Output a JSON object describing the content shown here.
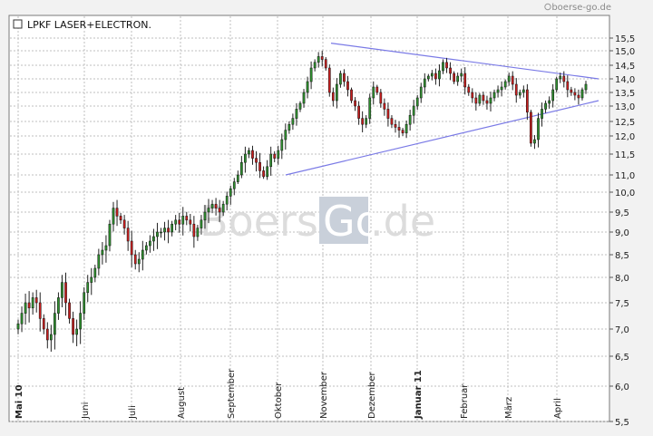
{
  "credit": "boerse-go.de",
  "watermark": {
    "left": "Boerse",
    "box": "Go",
    "right": ".de"
  },
  "chart_data": {
    "type": "candlestick",
    "title": "LPKF LASER+ELECTRON.",
    "ylim": [
      5.5,
      15.5
    ],
    "y_ticks": [
      15.5,
      15.0,
      14.5,
      14.0,
      13.5,
      13.0,
      12.5,
      12.0,
      11.5,
      11.0,
      10.0,
      9.5,
      9.0,
      8.5,
      8.0,
      7.5,
      7.0,
      6.5,
      6.0,
      5.5
    ],
    "x_ticks": [
      "Mai 10",
      "Juni",
      "Juli",
      "August",
      "September",
      "Oktober",
      "November",
      "Dezember",
      "Januar 11",
      "Februar",
      "März",
      "April"
    ],
    "bold_x_ticks": [
      "Mai 10",
      "Januar 11"
    ],
    "grid": true,
    "colors": {
      "up": "#2f8f2f",
      "down": "#c81e1e",
      "trendline": "#7a7ae6",
      "grid": "#bfbfbf"
    },
    "series": [
      {
        "values": [
          7.1,
          7.3,
          7.5,
          7.4,
          7.6,
          7.5,
          7.2,
          7.0,
          6.8,
          6.9,
          7.3,
          7.6,
          7.9,
          7.5,
          7.2,
          6.9,
          7.0,
          7.3,
          7.7,
          7.9,
          8.0,
          8.2,
          8.5,
          8.6,
          8.7,
          9.2,
          9.6,
          9.4,
          9.3,
          9.1,
          8.8,
          8.5,
          8.3,
          8.4,
          8.6,
          8.7,
          8.8,
          8.9,
          9.0,
          9.0,
          9.1,
          9.0,
          9.2,
          9.3,
          9.2,
          9.4,
          9.3,
          9.2,
          8.9,
          9.1,
          9.3,
          9.5,
          9.6,
          9.7,
          9.6,
          9.5,
          9.7,
          9.9,
          10.2,
          10.6,
          11.0,
          11.3,
          11.5,
          11.6,
          11.4,
          11.3,
          11.1,
          10.9,
          11.2,
          11.5,
          11.4,
          11.6,
          11.9,
          12.2,
          12.4,
          12.6,
          12.9,
          13.1,
          13.5,
          13.9,
          14.4,
          14.6,
          14.8,
          14.7,
          14.4,
          13.5,
          13.2,
          13.8,
          14.2,
          13.9,
          13.6,
          13.2,
          13.0,
          12.6,
          12.4,
          12.6,
          13.3,
          13.7,
          13.5,
          13.1,
          12.9,
          12.6,
          12.4,
          12.3,
          12.2,
          12.1,
          12.4,
          12.7,
          13.0,
          13.3,
          13.7,
          14.0,
          14.1,
          14.2,
          14.0,
          14.3,
          14.6,
          14.4,
          14.2,
          13.9,
          14.1,
          14.2,
          13.7,
          13.5,
          13.3,
          13.1,
          13.4,
          13.2,
          13.1,
          13.3,
          13.5,
          13.6,
          13.7,
          13.9,
          14.1,
          13.8,
          13.4,
          13.5,
          13.6,
          12.8,
          11.8,
          11.9,
          12.6,
          12.9,
          13.1,
          13.2,
          13.6,
          14.0,
          14.1,
          13.9,
          13.6,
          13.5,
          13.4,
          13.3,
          13.6,
          13.8
        ]
      }
    ],
    "trendlines": [
      {
        "from": {
          "month": "November",
          "value": 15.3
        },
        "to": {
          "month": "April-end",
          "value": 14.0
        }
      },
      {
        "from": {
          "month": "Oktober",
          "value": 11.0
        },
        "to": {
          "month": "April-end",
          "value": 13.2
        }
      }
    ]
  }
}
